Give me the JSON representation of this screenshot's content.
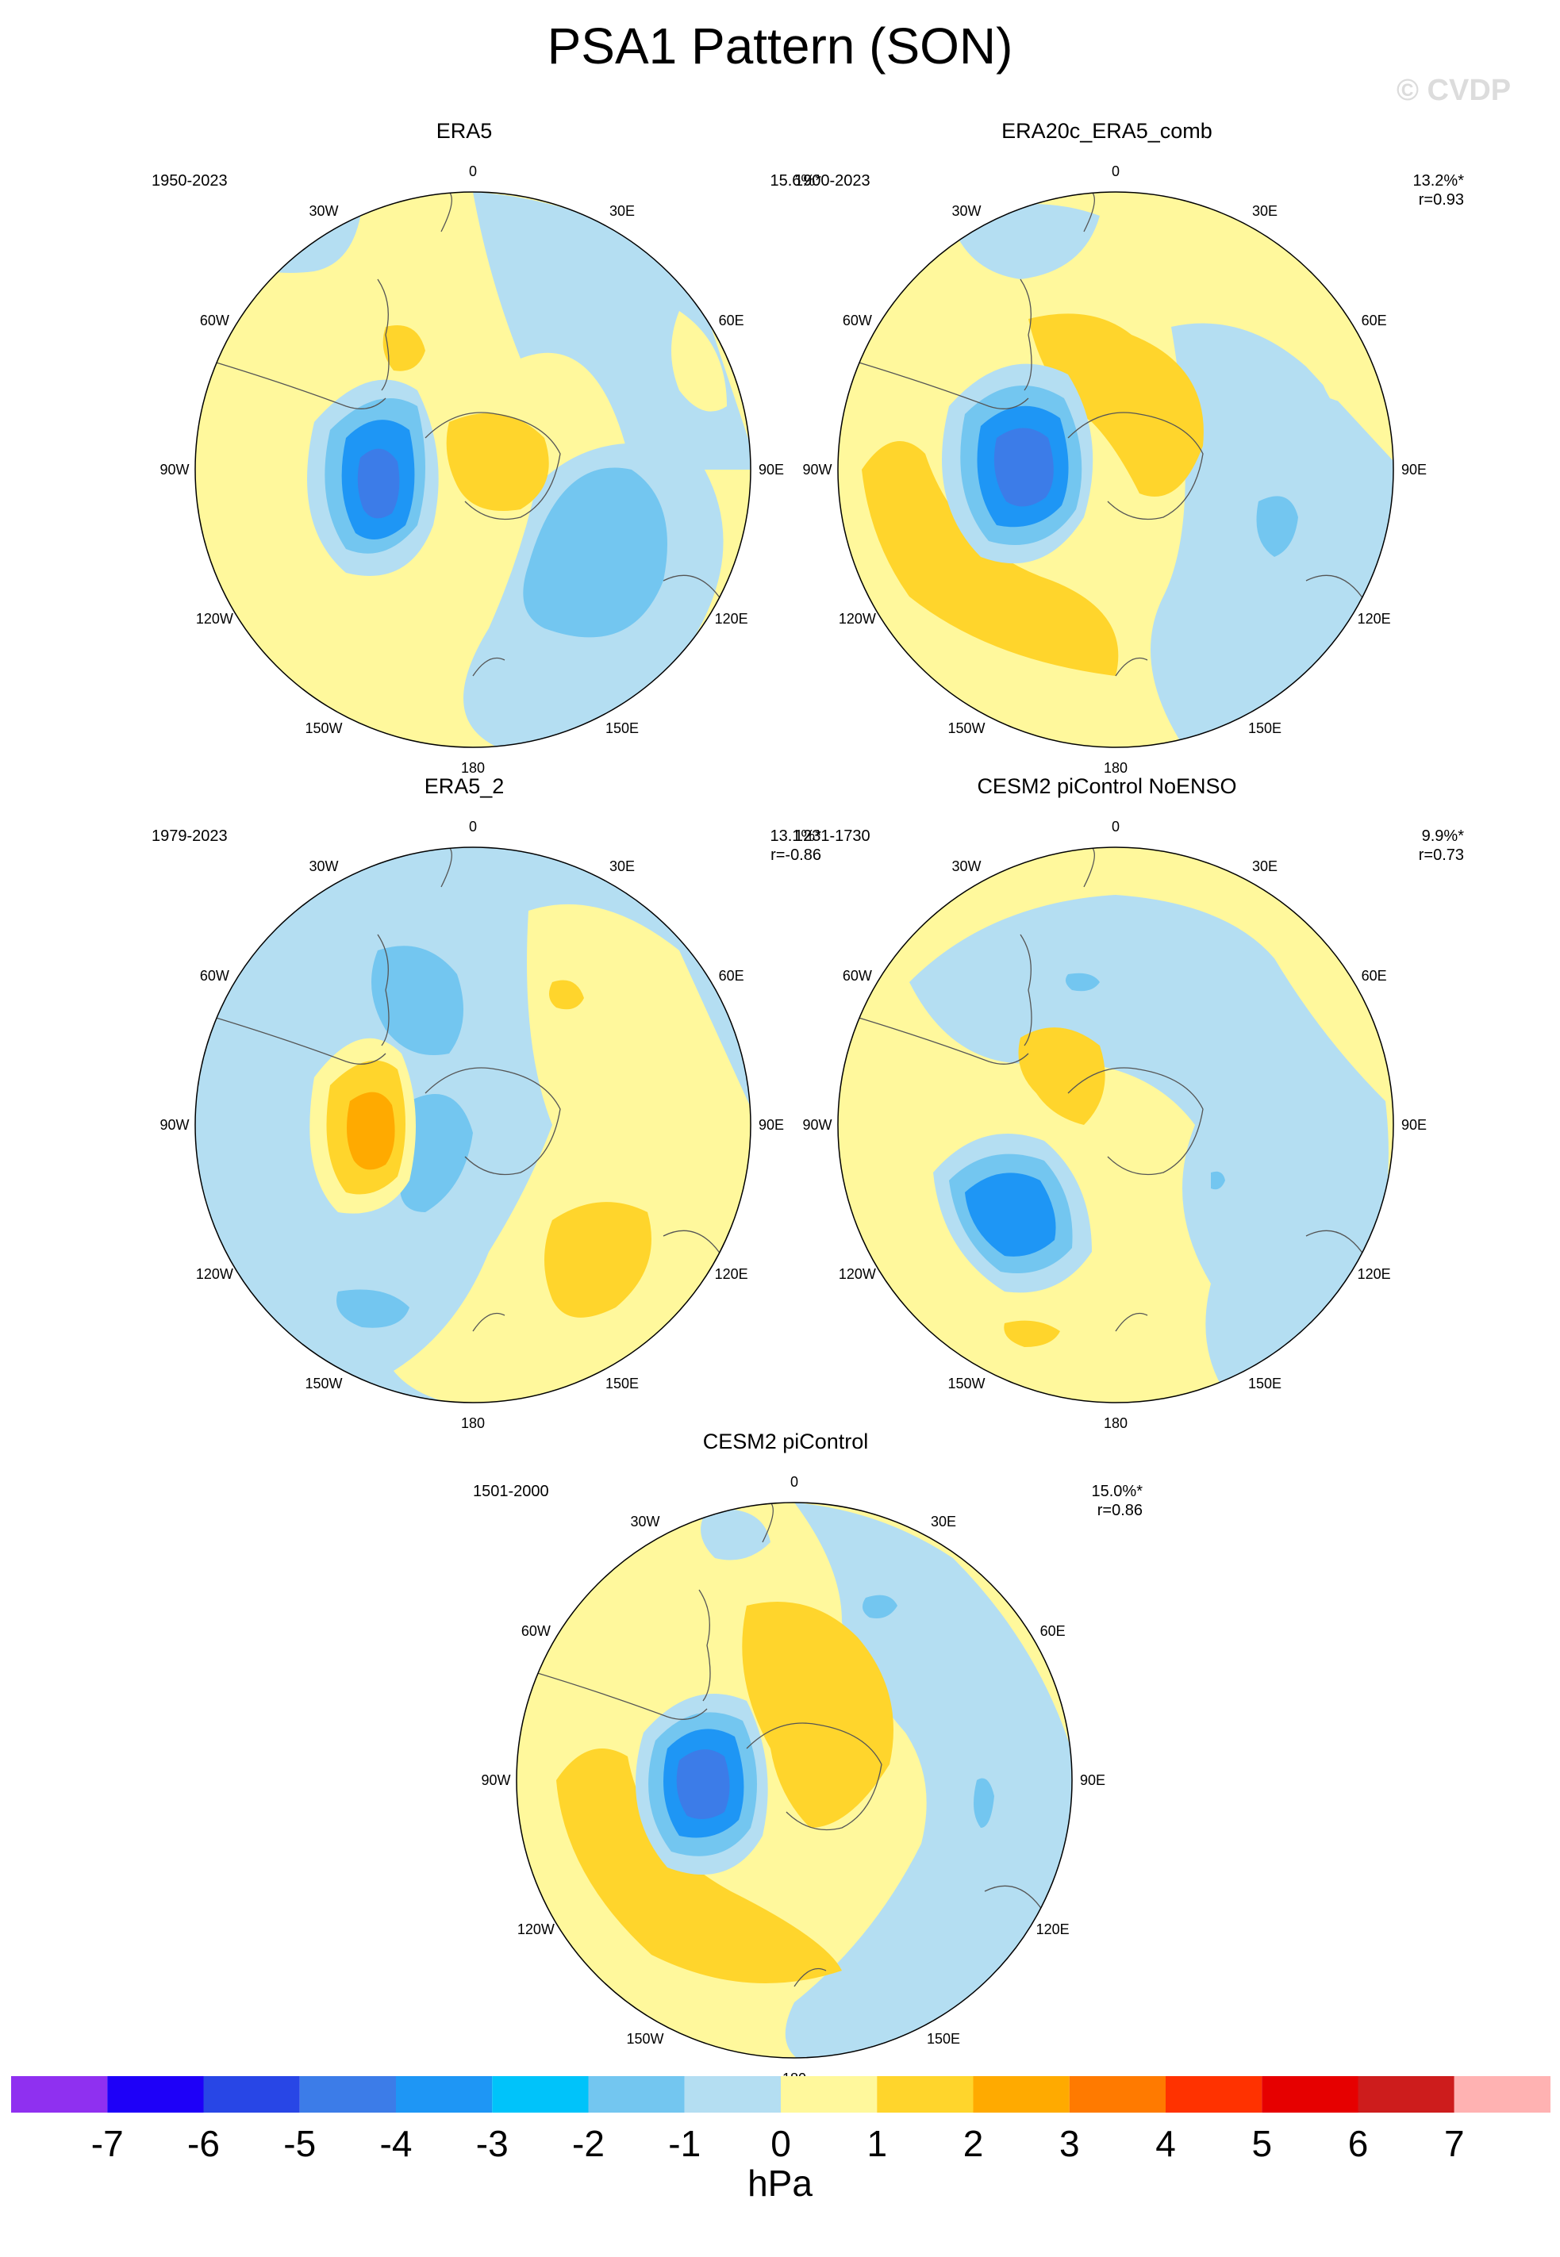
{
  "title": "PSA1 Pattern (SON)",
  "watermark": "© CVDP",
  "panels": [
    {
      "title": "ERA5",
      "period": "1950-2023",
      "pct": "15.6%*",
      "corr": ""
    },
    {
      "title": "ERA20c_ERA5_comb",
      "period": "1900-2023",
      "pct": "13.2%*",
      "corr": "r=0.93"
    },
    {
      "title": "ERA5_2",
      "period": "1979-2023",
      "pct": "13.1%*",
      "corr": "r=-0.86"
    },
    {
      "title": "CESM2 piControl NoENSO",
      "period": "1231-1730",
      "pct": "9.9%*",
      "corr": "r=0.73"
    },
    {
      "title": "CESM2 piControl",
      "period": "1501-2000",
      "pct": "15.0%*",
      "corr": "r=0.86"
    }
  ],
  "longitude_labels": [
    "0",
    "30E",
    "60E",
    "90E",
    "120E",
    "150E",
    "180",
    "150W",
    "120W",
    "90W",
    "60W",
    "30W"
  ],
  "colorbar": {
    "unit": "hPa",
    "tick_labels": [
      "-7",
      "-6",
      "-5",
      "-4",
      "-3",
      "-2",
      "-1",
      "0",
      "1",
      "2",
      "3",
      "4",
      "5",
      "6",
      "7"
    ],
    "colors": [
      "#8f30f0",
      "#1e00f8",
      "#2846e6",
      "#3c7ce8",
      "#1e96f5",
      "#00c3fa",
      "#73c6f0",
      "#b4def2",
      "#fff89c",
      "#ffd52c",
      "#ffaa00",
      "#ff7a00",
      "#ff3200",
      "#e60000",
      "#cd1c1c",
      "#ffb2b2"
    ]
  },
  "fills": {
    "neg1": "#b4def2",
    "neg2": "#73c6f0",
    "neg3": "#1e96f5",
    "neg4": "#3c7ce8",
    "pos1": "#fff89c",
    "pos2": "#ffd52c",
    "pos3": "#ffaa00"
  }
}
